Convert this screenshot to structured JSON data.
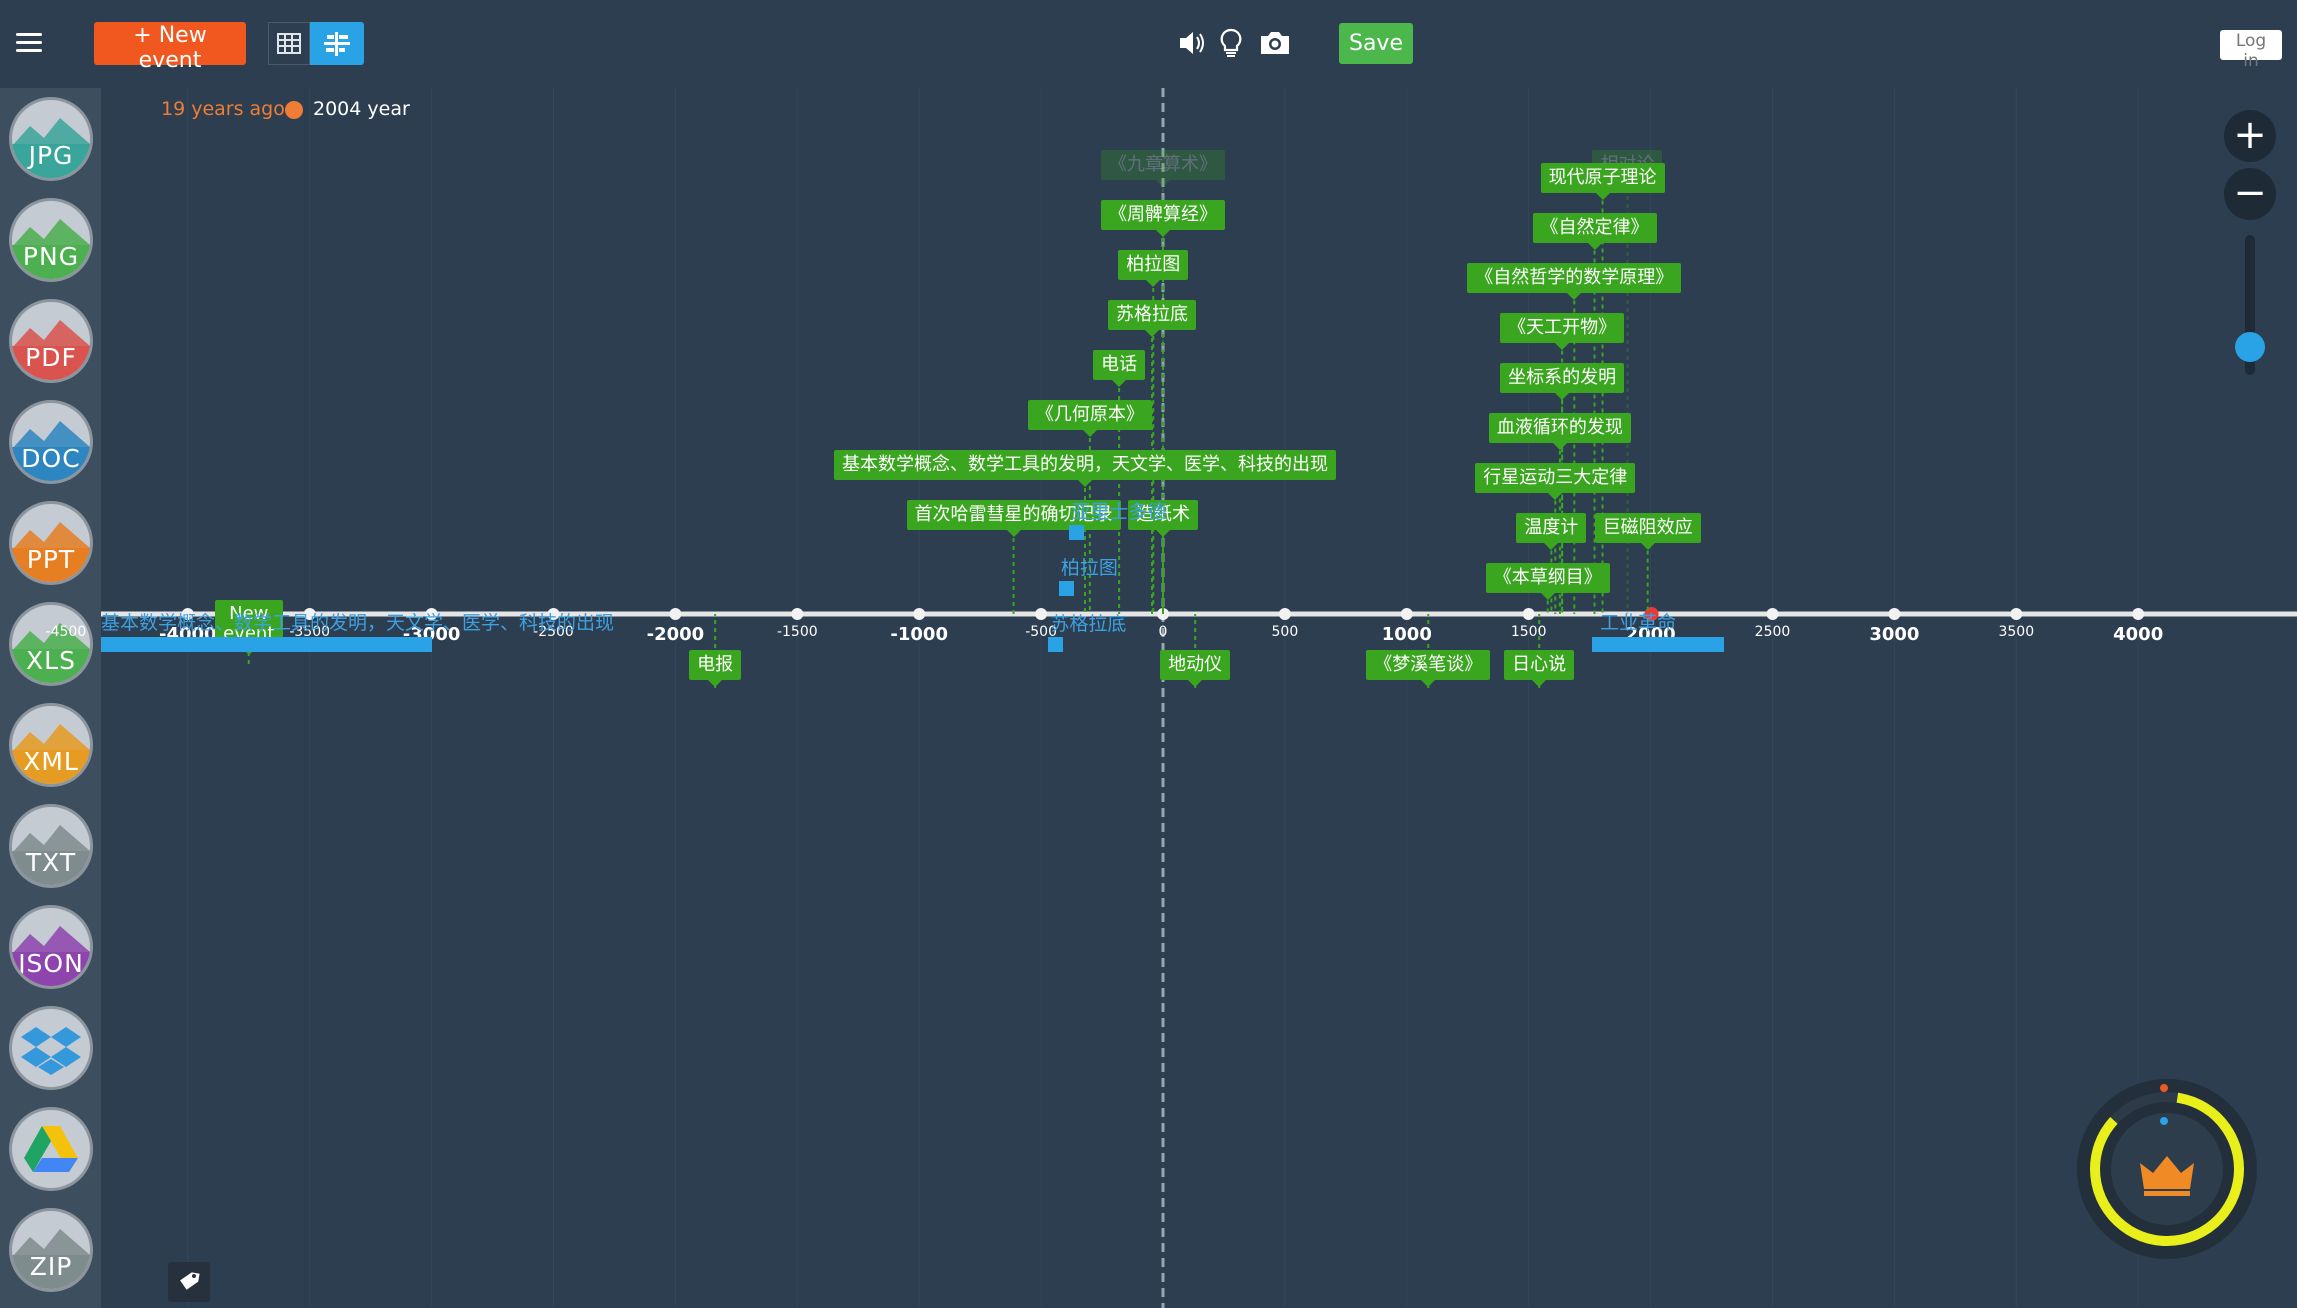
{
  "toolbar": {
    "new_event_label": "+ New event",
    "save_label": "Save",
    "login_label": "Log in",
    "icons": [
      "menu-icon",
      "table-view-icon",
      "timeline-view-icon",
      "speaker-icon",
      "lightbulb-icon",
      "camera-icon"
    ]
  },
  "info": {
    "ago": "19 years ago",
    "year": "2004 year"
  },
  "export_items": [
    {
      "label": "JPG",
      "color": "#3aa59a"
    },
    {
      "label": "PNG",
      "color": "#4caf50"
    },
    {
      "label": "PDF",
      "color": "#d9534f"
    },
    {
      "label": "DOC",
      "color": "#2e86c1"
    },
    {
      "label": "PPT",
      "color": "#e67e22"
    },
    {
      "label": "XLS",
      "color": "#4caf50"
    },
    {
      "label": "XML",
      "color": "#e69b22"
    },
    {
      "label": "TXT",
      "color": "#7f8c8d"
    },
    {
      "label": "JSON",
      "color": "#8e44ad"
    },
    {
      "label": "",
      "icon": "dropbox-icon",
      "color": "#3498db"
    },
    {
      "label": "",
      "icon": "google-drive-icon",
      "color": "#2ecc71"
    },
    {
      "label": "ZIP",
      "color": "#7f8c8d"
    }
  ],
  "axis": {
    "ticks": [
      -4500,
      -4000,
      -3500,
      -3000,
      -2500,
      -2000,
      -1500,
      -1000,
      -500,
      0,
      500,
      1000,
      1500,
      2000,
      2500,
      3000,
      3500,
      4000
    ],
    "major": [
      -4000,
      -3000,
      -2000,
      -1000,
      1000,
      2000,
      3000,
      4000
    ],
    "current_year": 2004,
    "axis_color": "#e6e6e6",
    "event_color": "#3aa51e",
    "period_color": "#29a3e6"
  },
  "events": [
    {
      "label": "《九章算术》",
      "year": 0,
      "row": 0,
      "faded": true
    },
    {
      "label": "《周髀算经》",
      "year": 0,
      "row": 1
    },
    {
      "label": "柏拉图",
      "year": -40,
      "row": 2
    },
    {
      "label": "苏格拉底",
      "year": -45,
      "row": 3
    },
    {
      "label": "电话",
      "year": -180,
      "row": 4
    },
    {
      "label": "《几何原本》",
      "year": -300,
      "row": 5
    },
    {
      "label": "基本数学概念、数学工具的发明，天文学、医学、科技的出现",
      "year": -320,
      "row": 6
    },
    {
      "label": "首次哈雷彗星的确切记录",
      "year": -613,
      "row": 7
    },
    {
      "label": "造纸术",
      "year": 0,
      "row": 7
    },
    {
      "label": "New event",
      "year": -3750,
      "row": 9,
      "two_line": true
    },
    {
      "label": "电报",
      "year": -1837,
      "row": 10
    },
    {
      "label": "地动仪",
      "year": 132,
      "row": 10
    },
    {
      "label": "《梦溪笔谈》",
      "year": 1088,
      "row": 10
    },
    {
      "label": "日心说",
      "year": 1543,
      "row": 10
    },
    {
      "label": "相对论",
      "year": 1905,
      "row": 0,
      "faded": true
    },
    {
      "label": "现代原子理论",
      "year": 1803,
      "row": 0.25
    },
    {
      "label": "《自然定律》",
      "year": 1770,
      "row": 1.25
    },
    {
      "label": "《自然哲学的数学原理》",
      "year": 1687,
      "row": 2.25
    },
    {
      "label": "《天工开物》",
      "year": 1637,
      "row": 3.25
    },
    {
      "label": "坐标系的发明",
      "year": 1637,
      "row": 4.25
    },
    {
      "label": "血液循环的发现",
      "year": 1628,
      "row": 5.25
    },
    {
      "label": "行星运动三大定律",
      "year": 1609,
      "row": 6.25
    },
    {
      "label": "温度计",
      "year": 1593,
      "row": 7.25
    },
    {
      "label": "巨磁阻效应",
      "year": 1988,
      "row": 7.25
    },
    {
      "label": "《本草纲目》",
      "year": 1578,
      "row": 8.25
    }
  ],
  "periods": [
    {
      "label": "基本数学概念、数学工具的发明，天文学、医学、科技的出现",
      "start": -4800,
      "end": -3000,
      "row": 0,
      "bar": true
    },
    {
      "label": "工业革命",
      "start": 1760,
      "end": 2300,
      "row": 0,
      "bar": true
    },
    {
      "label": "亚里士多德",
      "start": -384,
      "end": -322,
      "row": 2
    },
    {
      "label": "柏拉图",
      "start": -427,
      "end": -347,
      "row": 1
    },
    {
      "label": "苏格拉底",
      "start": -470,
      "end": -399,
      "row": 0
    }
  ]
}
